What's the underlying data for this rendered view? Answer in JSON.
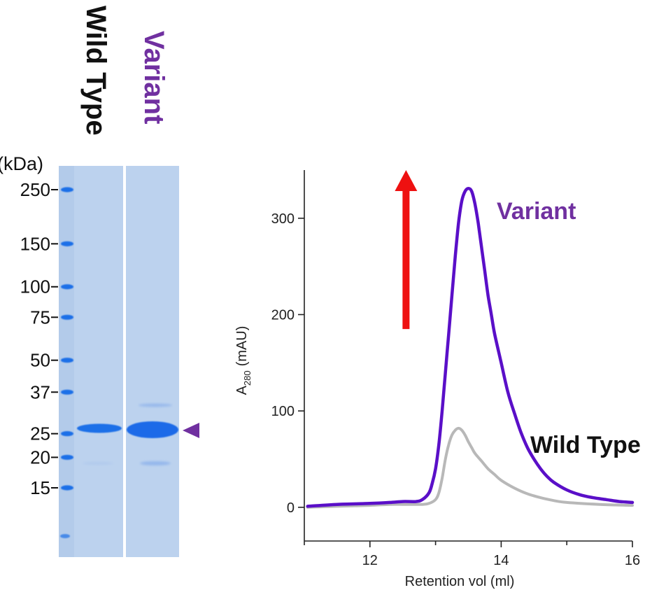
{
  "gel": {
    "unit_label": "(kDa)",
    "lanes": [
      {
        "name": "Wild Type",
        "color": "#111111"
      },
      {
        "name": "Variant",
        "color": "#7030a0"
      }
    ],
    "markers": [
      {
        "kda": 250,
        "label": "250"
      },
      {
        "kda": 150,
        "label": "150"
      },
      {
        "kda": 100,
        "label": "100"
      },
      {
        "kda": 75,
        "label": "75"
      },
      {
        "kda": 50,
        "label": "50"
      },
      {
        "kda": 37,
        "label": "37"
      },
      {
        "kda": 25,
        "label": "25"
      },
      {
        "kda": 20,
        "label": "20"
      },
      {
        "kda": 15,
        "label": "15"
      }
    ],
    "arrowhead_color": "#7030a0",
    "gel_color": "#bcd2ee",
    "band_color": "#1e6fe8"
  },
  "chart_data": {
    "type": "line",
    "title": "",
    "xlabel": "Retention vol (ml)",
    "ylabel_main": "A",
    "ylabel_sub": "280",
    "ylabel_unit": "(mAU)",
    "xlim": [
      11,
      16
    ],
    "ylim": [
      -35,
      350
    ],
    "xticks": [
      12,
      14,
      16
    ],
    "yticks": [
      0,
      100,
      200,
      300
    ],
    "grid": false,
    "series": [
      {
        "name": "Variant",
        "color": "#5a0fc8",
        "label_color": "#7030a0",
        "x": [
          11.05,
          11.5,
          12.0,
          12.3,
          12.5,
          12.7,
          12.8,
          12.9,
          12.95,
          13.0,
          13.05,
          13.1,
          13.15,
          13.2,
          13.25,
          13.3,
          13.35,
          13.4,
          13.45,
          13.5,
          13.55,
          13.6,
          13.65,
          13.7,
          13.75,
          13.8,
          13.85,
          13.9,
          14.0,
          14.1,
          14.2,
          14.3,
          14.4,
          14.5,
          14.6,
          14.7,
          14.8,
          15.0,
          15.2,
          15.4,
          15.6,
          15.8,
          16.0
        ],
        "y": [
          1,
          3,
          4,
          5,
          6,
          6,
          8,
          15,
          25,
          40,
          65,
          100,
          140,
          180,
          220,
          260,
          295,
          318,
          328,
          331,
          328,
          315,
          295,
          270,
          245,
          220,
          200,
          180,
          150,
          120,
          98,
          78,
          62,
          50,
          40,
          32,
          26,
          18,
          13,
          10,
          8,
          6,
          5
        ]
      },
      {
        "name": "Wild Type",
        "color": "#b8b8b8",
        "label_color": "#111111",
        "x": [
          11.05,
          11.5,
          12.0,
          12.3,
          12.5,
          12.7,
          12.8,
          12.9,
          13.0,
          13.05,
          13.1,
          13.15,
          13.2,
          13.25,
          13.3,
          13.35,
          13.4,
          13.45,
          13.5,
          13.55,
          13.6,
          13.7,
          13.8,
          13.9,
          14.0,
          14.2,
          14.4,
          14.6,
          14.8,
          15.0,
          15.5,
          16.0
        ],
        "y": [
          0,
          1,
          2,
          3,
          3,
          3,
          3,
          4,
          8,
          15,
          30,
          50,
          65,
          75,
          80,
          82,
          80,
          75,
          68,
          62,
          56,
          48,
          40,
          34,
          28,
          20,
          14,
          10,
          7,
          5,
          3,
          2
        ]
      }
    ],
    "annotations": [
      {
        "type": "arrow",
        "direction": "up",
        "color": "#ee1111",
        "x": 12.55,
        "y_from": 185,
        "y_to": 350
      }
    ]
  }
}
